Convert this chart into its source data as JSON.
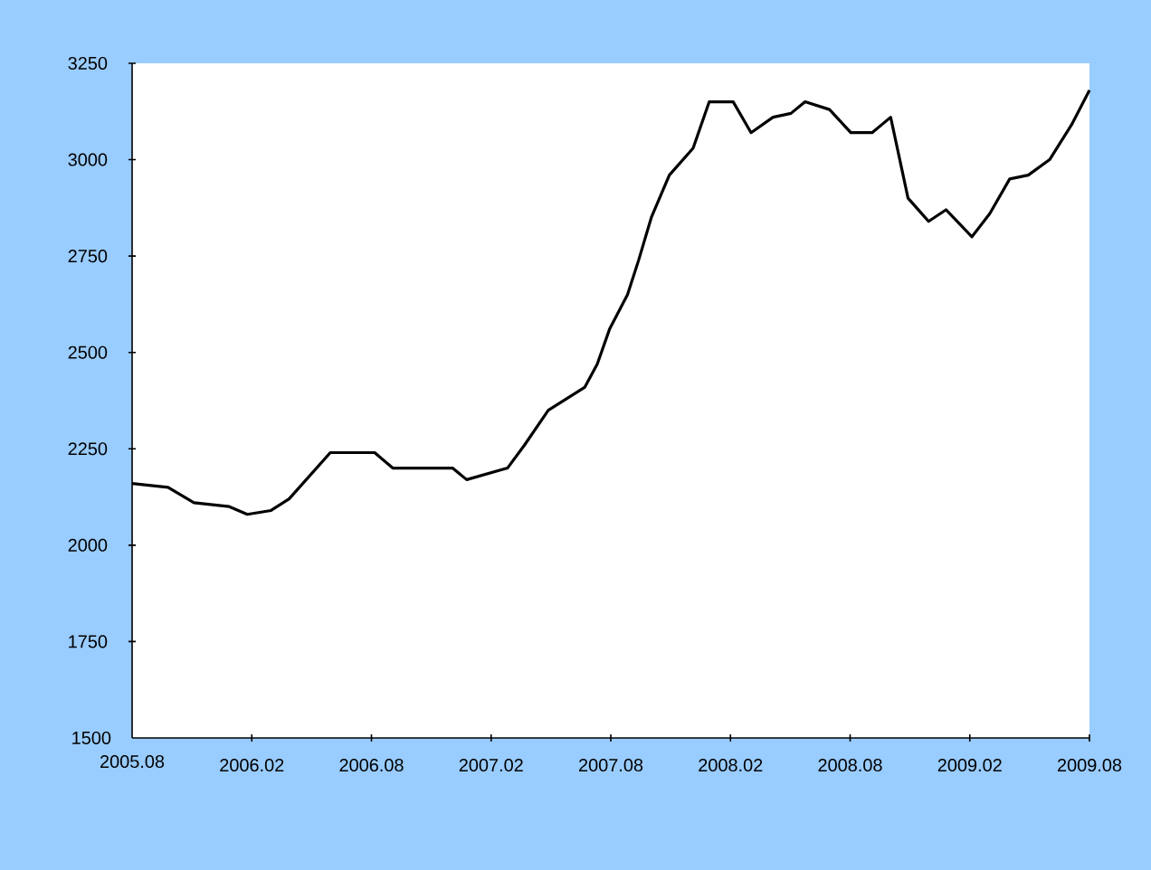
{
  "chart_data": {
    "type": "line",
    "x": [
      "2005-08-01",
      "2005-09-25",
      "2005-11-04",
      "2005-12-28",
      "2006-01-25",
      "2006-02-28",
      "2006-03-28",
      "2006-05-30",
      "2006-08-06",
      "2006-09-03",
      "2006-12-03",
      "2006-12-25",
      "2007-02-24",
      "2007-03-22",
      "2007-04-27",
      "2007-06-22",
      "2007-07-11",
      "2007-07-30",
      "2007-08-27",
      "2007-09-13",
      "2007-10-02",
      "2007-10-30",
      "2007-12-05",
      "2007-12-30",
      "2008-02-05",
      "2008-03-02",
      "2008-04-05",
      "2008-05-02",
      "2008-05-24",
      "2008-06-30",
      "2008-08-02",
      "2008-09-04",
      "2008-10-02",
      "2008-10-29",
      "2008-11-29",
      "2008-12-26",
      "2009-02-04",
      "2009-03-01",
      "2009-04-01",
      "2009-04-29",
      "2009-06-01",
      "2009-07-04",
      "2009-08-01"
    ],
    "values": [
      2160,
      2150,
      2110,
      2100,
      2080,
      2090,
      2120,
      2240,
      2240,
      2200,
      2200,
      2170,
      2200,
      2260,
      2350,
      2410,
      2470,
      2560,
      2650,
      2740,
      2850,
      2960,
      3030,
      3150,
      3150,
      3070,
      3110,
      3120,
      3150,
      3130,
      3070,
      3070,
      3110,
      2900,
      2840,
      2870,
      2800,
      2860,
      2950,
      2960,
      3000,
      3090,
      3180
    ],
    "color": "#000000",
    "line_style": "solid",
    "marker": "none",
    "xlim": [
      "2005-08",
      "2009-08"
    ],
    "ylim": [
      1500,
      3250
    ],
    "xticks": [
      {
        "value": "2005-08",
        "label": "2005.08"
      },
      {
        "value": "2006-02",
        "label": "2006.02"
      },
      {
        "value": "2006-08",
        "label": "2006.08"
      },
      {
        "value": "2007-02",
        "label": "2007.02"
      },
      {
        "value": "2007-08",
        "label": "2007.08"
      },
      {
        "value": "2008-02",
        "label": "2008.02"
      },
      {
        "value": "2008-08",
        "label": "2008.08"
      },
      {
        "value": "2009-02",
        "label": "2009.02"
      },
      {
        "value": "2009-08",
        "label": "2009.08"
      }
    ],
    "yticks": [
      1500,
      1750,
      2000,
      2250,
      2500,
      2750,
      3000,
      3250
    ]
  }
}
